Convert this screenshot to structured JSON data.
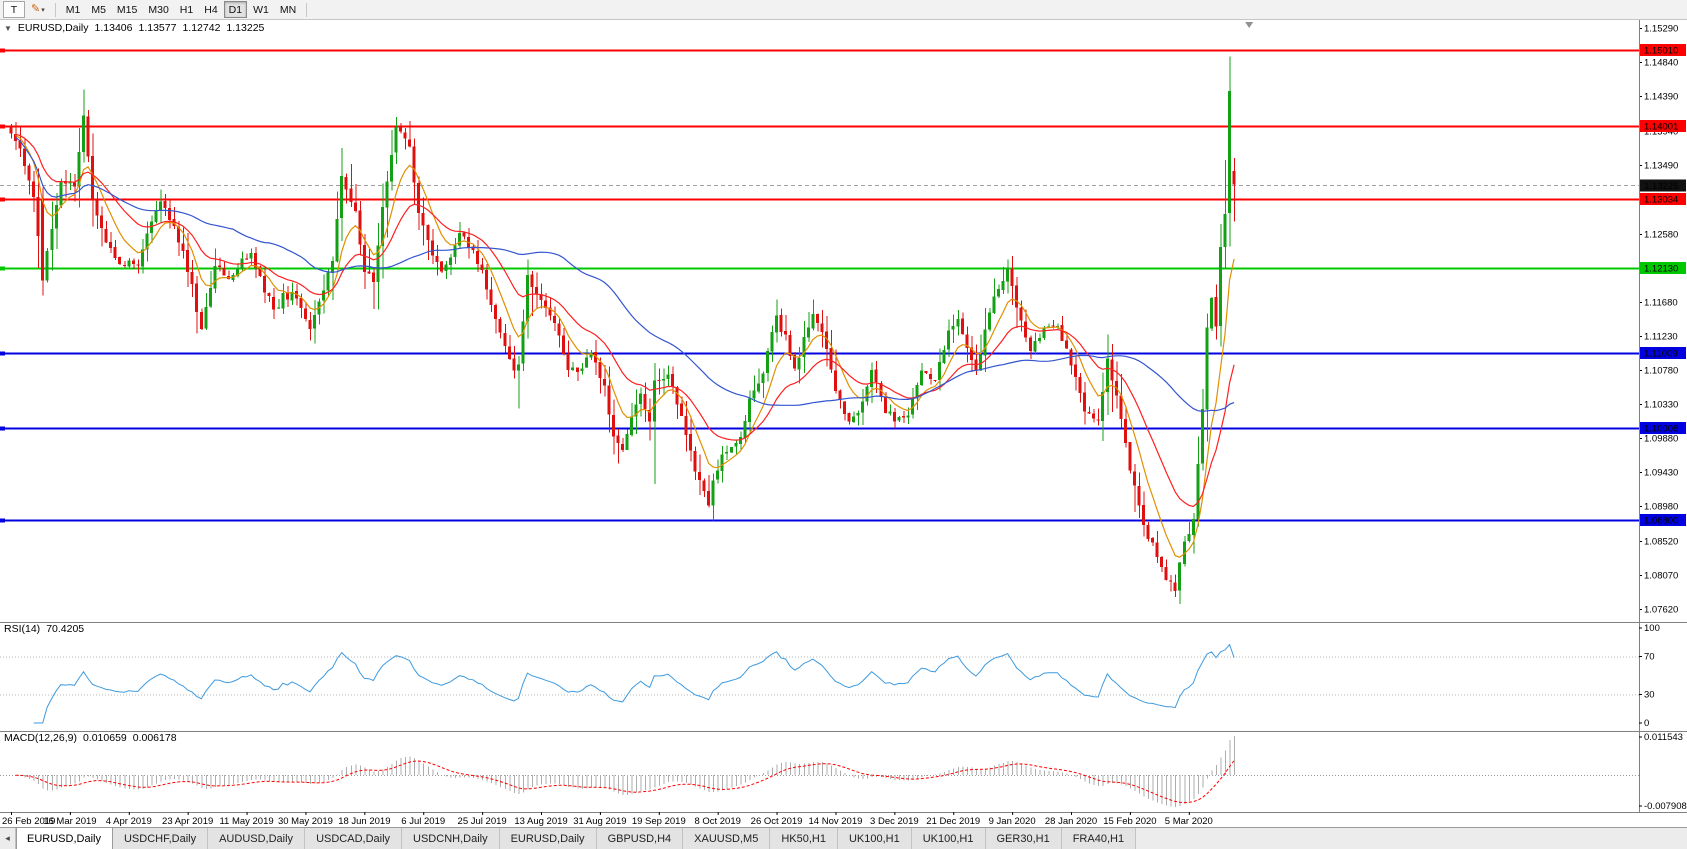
{
  "toolbar": {
    "t_button_label": "T",
    "pen_glyph": "✎",
    "caret_glyph": "▾",
    "timeframes": [
      "M1",
      "M5",
      "M15",
      "M30",
      "H1",
      "H4",
      "D1",
      "W1",
      "MN"
    ],
    "active_timeframe": "D1"
  },
  "chart": {
    "caret_glyph": "▼",
    "symbol": "EURUSD,Daily",
    "ohlc": {
      "open": "1.13406",
      "high": "1.13577",
      "low": "1.12742",
      "close": "1.13225"
    }
  },
  "rsi": {
    "name": "RSI(14)",
    "value": "70.4205",
    "ticks": [
      "100",
      "70",
      "30",
      "0"
    ],
    "levels": [
      70,
      30
    ],
    "color": "#3E9ADE"
  },
  "macd": {
    "name": "MACD(12,26,9)",
    "main": "0.010659",
    "signal": "0.006178",
    "ticks": [
      "0.011543",
      "-0.007908"
    ],
    "histogram_color": "#ADADAD",
    "signal_color": "#FF0000"
  },
  "tabs": {
    "scroll_glyph": "◂",
    "items": [
      {
        "label": "EURUSD,Daily",
        "active": true
      },
      {
        "label": "USDCHF,Daily",
        "active": false
      },
      {
        "label": "AUDUSD,Daily",
        "active": false
      },
      {
        "label": "USDCAD,Daily",
        "active": false
      },
      {
        "label": "USDCNH,Daily",
        "active": false
      },
      {
        "label": "EURUSD,Daily",
        "active": false
      },
      {
        "label": "GBPUSD,H4",
        "active": false
      },
      {
        "label": "XAUUSD,M5",
        "active": false
      },
      {
        "label": "HK50,H1",
        "active": false
      },
      {
        "label": "UK100,H1",
        "active": false
      },
      {
        "label": "UK100,H1",
        "active": false
      },
      {
        "label": "GER30,H1",
        "active": false
      },
      {
        "label": "FRA40,H1",
        "active": false
      }
    ]
  },
  "chart_data": {
    "type": "candlestick",
    "symbol": "EURUSD",
    "timeframe": "Daily",
    "bars": 271,
    "x_label_every_bars": 13,
    "x_labels": [
      "26 Feb 2019",
      "16 Mar 2019",
      "4 Apr 2019",
      "23 Apr 2019",
      "11 May 2019",
      "30 May 2019",
      "18 Jun 2019",
      "6 Jul 2019",
      "25 Jul 2019",
      "13 Aug 2019",
      "31 Aug 2019",
      "19 Sep 2019",
      "8 Oct 2019",
      "26 Oct 2019",
      "14 Nov 2019",
      "3 Dec 2019",
      "21 Dec 2019",
      "9 Jan 2020",
      "28 Jan 2020",
      "15 Feb 2020",
      "5 Mar 2020"
    ],
    "y_axis": {
      "min": 1.0745,
      "max": 1.154,
      "ticks": [
        "1.15290",
        "1.14840",
        "1.14390",
        "1.13940",
        "1.13490",
        "1.13040",
        "1.12580",
        "1.12130",
        "1.11680",
        "1.11230",
        "1.10780",
        "1.10330",
        "1.09880",
        "1.09430",
        "1.08980",
        "1.08520",
        "1.08070",
        "1.07620"
      ]
    },
    "horizontal_levels": [
      {
        "value": 1.1501,
        "label": "1.15010",
        "color": "#FF0000"
      },
      {
        "value": 1.14001,
        "label": "1.14001",
        "color": "#FF0000"
      },
      {
        "value": 1.13034,
        "label": "1.13034",
        "color": "#FF0000"
      },
      {
        "value": 1.1213,
        "label": "1.12130",
        "color": "#00C800"
      },
      {
        "value": 1.11009,
        "label": "1.11009",
        "color": "#0000E0"
      },
      {
        "value": 1.10008,
        "label": "1.10008",
        "color": "#0000E0"
      },
      {
        "value": 1.088,
        "label": "1.08800",
        "color": "#0000E0"
      }
    ],
    "current_price": {
      "value": 1.13225,
      "label": "1.13225",
      "line_color": "#A0A0A0",
      "box_color": "#111111"
    },
    "colors": {
      "up": "#14A014",
      "down": "#E01010",
      "background": "#FFFFFF"
    },
    "moving_averages": [
      {
        "type": "ema",
        "period": 8,
        "color": "#E09000"
      },
      {
        "type": "ema",
        "period": 21,
        "color": "#FF2020"
      },
      {
        "type": "sma",
        "period": 50,
        "color": "#3355D0"
      }
    ],
    "close_anchors": [
      [
        0,
        1.139
      ],
      [
        2,
        1.137
      ],
      [
        5,
        1.1306
      ],
      [
        7,
        1.1196
      ],
      [
        8,
        1.1235
      ],
      [
        11,
        1.1327
      ],
      [
        14,
        1.132
      ],
      [
        16,
        1.1414
      ],
      [
        18,
        1.1302
      ],
      [
        21,
        1.1246
      ],
      [
        24,
        1.1218
      ],
      [
        28,
        1.1216
      ],
      [
        31,
        1.1274
      ],
      [
        33,
        1.13
      ],
      [
        38,
        1.1235
      ],
      [
        42,
        1.1132
      ],
      [
        45,
        1.1215
      ],
      [
        48,
        1.1198
      ],
      [
        53,
        1.1232
      ],
      [
        58,
        1.1158
      ],
      [
        62,
        1.1181
      ],
      [
        66,
        1.1132
      ],
      [
        68,
        1.1168
      ],
      [
        71,
        1.1222
      ],
      [
        73,
        1.1334
      ],
      [
        76,
        1.1288
      ],
      [
        78,
        1.1207
      ],
      [
        80,
        1.1194
      ],
      [
        82,
        1.1293
      ],
      [
        85,
        1.1398
      ],
      [
        88,
        1.1373
      ],
      [
        90,
        1.1285
      ],
      [
        95,
        1.1208
      ],
      [
        99,
        1.1259
      ],
      [
        104,
        1.121
      ],
      [
        107,
        1.1145
      ],
      [
        111,
        1.1077
      ],
      [
        112,
        1.1085
      ],
      [
        114,
        1.1203
      ],
      [
        117,
        1.117
      ],
      [
        120,
        1.114
      ],
      [
        123,
        1.1078
      ],
      [
        126,
        1.108
      ],
      [
        128,
        1.1101
      ],
      [
        131,
        1.1057
      ],
      [
        133,
        1.099
      ],
      [
        135,
        1.0972
      ],
      [
        139,
        1.1047
      ],
      [
        141,
        1.101
      ],
      [
        142,
        1.1064
      ],
      [
        145,
        1.1072
      ],
      [
        148,
        1.1017
      ],
      [
        151,
        1.0944
      ],
      [
        154,
        1.0899
      ],
      [
        155,
        1.0932
      ],
      [
        157,
        1.0966
      ],
      [
        161,
        1.0989
      ],
      [
        163,
        1.104
      ],
      [
        166,
        1.1073
      ],
      [
        169,
        1.115
      ],
      [
        173,
        1.108
      ],
      [
        177,
        1.1152
      ],
      [
        179,
        1.1128
      ],
      [
        182,
        1.105
      ],
      [
        185,
        1.101
      ],
      [
        187,
        1.1021
      ],
      [
        190,
        1.1078
      ],
      [
        193,
        1.1021
      ],
      [
        198,
        1.1018
      ],
      [
        201,
        1.1077
      ],
      [
        204,
        1.1064
      ],
      [
        207,
        1.113
      ],
      [
        209,
        1.1145
      ],
      [
        213,
        1.1078
      ],
      [
        217,
        1.1175
      ],
      [
        220,
        1.1212
      ],
      [
        222,
        1.116
      ],
      [
        225,
        1.1103
      ],
      [
        228,
        1.1134
      ],
      [
        231,
        1.1136
      ],
      [
        234,
        1.1084
      ],
      [
        237,
        1.1023
      ],
      [
        240,
        1.1011
      ],
      [
        242,
        1.1093
      ],
      [
        244,
        1.1044
      ],
      [
        247,
        1.0945
      ],
      [
        250,
        1.0873
      ],
      [
        253,
        1.0831
      ],
      [
        257,
        1.0786
      ],
      [
        259,
        1.0851
      ],
      [
        261,
        1.0881
      ],
      [
        263,
        1.1026
      ],
      [
        264,
        1.1134
      ],
      [
        265,
        1.1173
      ],
      [
        266,
        1.1135
      ],
      [
        267,
        1.124
      ],
      [
        268,
        1.1284
      ],
      [
        269,
        1.1446
      ],
      [
        270,
        1.13225
      ]
    ],
    "ohlc_overrides": [
      {
        "i": 7,
        "o": 1.1304,
        "h": 1.1319,
        "l": 1.1176,
        "c": 1.1196
      },
      {
        "i": 16,
        "o": 1.1366,
        "h": 1.1448,
        "l": 1.1352,
        "c": 1.1414
      },
      {
        "i": 85,
        "o": 1.1365,
        "h": 1.1412,
        "l": 1.135,
        "c": 1.1398
      },
      {
        "i": 112,
        "o": 1.1077,
        "h": 1.1096,
        "l": 1.1027,
        "c": 1.1085
      },
      {
        "i": 142,
        "o": 1.101,
        "h": 1.1087,
        "l": 1.0927,
        "c": 1.1064
      },
      {
        "i": 155,
        "o": 1.0899,
        "h": 1.0941,
        "l": 1.0879,
        "c": 1.0932
      },
      {
        "i": 257,
        "o": 1.0797,
        "h": 1.0808,
        "l": 1.0778,
        "c": 1.0786
      },
      {
        "i": 263,
        "o": 1.0954,
        "h": 1.1053,
        "l": 1.0945,
        "c": 1.1026
      },
      {
        "i": 268,
        "o": 1.124,
        "h": 1.1355,
        "l": 1.1212,
        "c": 1.1284
      },
      {
        "i": 269,
        "o": 1.1285,
        "h": 1.1492,
        "l": 1.1241,
        "c": 1.1446
      },
      {
        "i": 270,
        "o": 1.13406,
        "h": 1.13577,
        "l": 1.12742,
        "c": 1.13225
      }
    ]
  }
}
